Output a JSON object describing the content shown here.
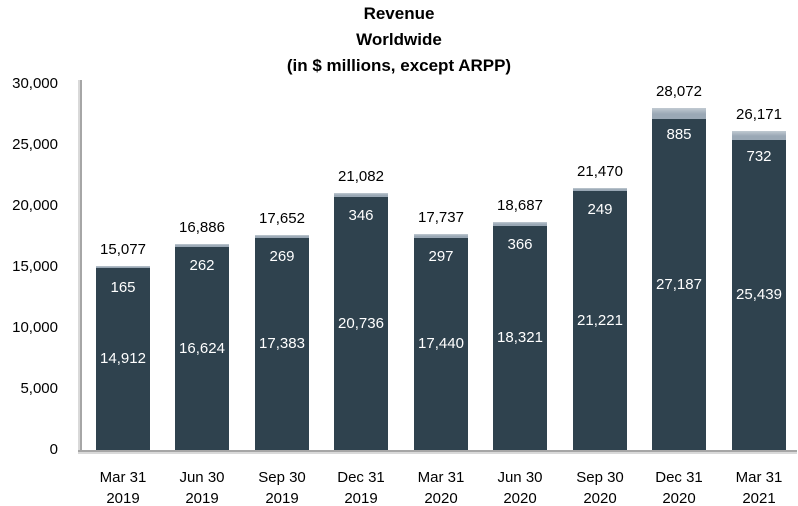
{
  "title": {
    "line1": "Revenue",
    "line2": "Worldwide",
    "line3": "(in $ millions, except ARPP)"
  },
  "colors": {
    "background": "#FFFFFF",
    "axis": "#A6A6A6",
    "axis_shadow": "#D9D9D9",
    "bar_dark": "#2F424E",
    "bar_light": "#9AA8B5",
    "bar_light_highlight": "#C1CAD2",
    "total_label": "#000000",
    "inside_label": "#FFFFFF"
  },
  "chart_data": {
    "type": "bar",
    "stacked": true,
    "title": "Revenue Worldwide (in $ millions, except ARPP)",
    "grid": false,
    "legend": false,
    "categories": [
      [
        "Mar 31",
        "2019"
      ],
      [
        "Jun 30",
        "2019"
      ],
      [
        "Sep 30",
        "2019"
      ],
      [
        "Dec 31",
        "2019"
      ],
      [
        "Mar 31",
        "2020"
      ],
      [
        "Jun 30",
        "2020"
      ],
      [
        "Sep 30",
        "2020"
      ],
      [
        "Dec 31",
        "2020"
      ],
      [
        "Mar 31",
        "2021"
      ]
    ],
    "series": [
      {
        "name": "revenue-base-segment",
        "color": "#2F424E",
        "values": [
          14912,
          16624,
          17383,
          20736,
          17440,
          18321,
          21221,
          27187,
          25439
        ]
      },
      {
        "name": "revenue-top-segment",
        "color": "#9AA8B5",
        "values": [
          165,
          262,
          269,
          346,
          297,
          366,
          249,
          885,
          732
        ]
      }
    ],
    "totals": [
      15077,
      16886,
      17652,
      21082,
      17737,
      18687,
      21470,
      28072,
      26171
    ],
    "y_axis": {
      "min": 0,
      "max": 30000,
      "tick_interval": 5000,
      "tick_labels": [
        "0",
        "5,000",
        "10,000",
        "15,000",
        "20,000",
        "25,000",
        "30,000"
      ]
    }
  }
}
